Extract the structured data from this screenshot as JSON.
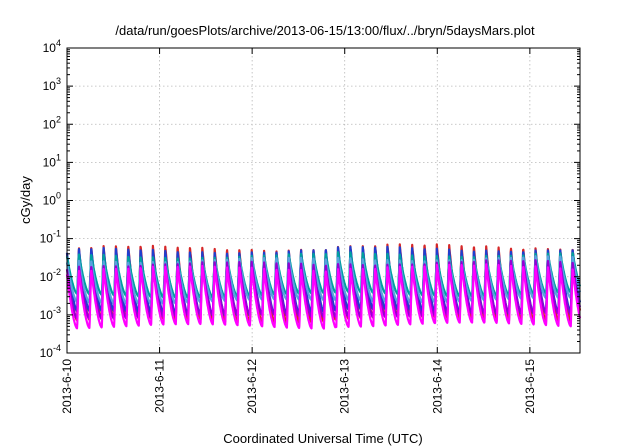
{
  "chart_data": {
    "type": "line",
    "title": "/data/run/goesPlots/archive/2013-06-15/13:00/flux/../bryn/5daysMars.plot",
    "xlabel": "Coordinated Universal Time (UTC)",
    "ylabel": "cGy/day",
    "yscale": "log",
    "ylim": [
      0.0001,
      10000
    ],
    "y_ticks": [
      {
        "base": "10",
        "exp": "-4"
      },
      {
        "base": "10",
        "exp": "-3"
      },
      {
        "base": "10",
        "exp": "-2"
      },
      {
        "base": "10",
        "exp": "-1"
      },
      {
        "base": "10",
        "exp": "0"
      },
      {
        "base": "10",
        "exp": "1"
      },
      {
        "base": "10",
        "exp": "2"
      },
      {
        "base": "10",
        "exp": "3"
      },
      {
        "base": "10",
        "exp": "4"
      }
    ],
    "x_ticks": [
      "2013-6-10",
      "2013-6-11",
      "2013-6-12",
      "2013-6-13",
      "2013-6-14",
      "2013-6-15"
    ],
    "xlim": [
      "2013-06-10T00:00",
      "2013-06-15T13:00"
    ],
    "grid": true,
    "cycles_per_day": 7.5,
    "series": [
      {
        "color": "#d62728",
        "peak": 0.058,
        "trough": 0.0007
      },
      {
        "color": "#1f3fd0",
        "peak": 0.05,
        "trough": 0.0011
      },
      {
        "color": "#00a0a0",
        "peak": 0.036,
        "trough": 0.0032
      },
      {
        "color": "#5aa0e0",
        "peak": 0.028,
        "trough": 0.0022
      },
      {
        "color": "#9400d3",
        "peak": 0.022,
        "trough": 0.0009
      },
      {
        "color": "#ff00ff",
        "peak": 0.017,
        "trough": 0.0005
      }
    ]
  }
}
